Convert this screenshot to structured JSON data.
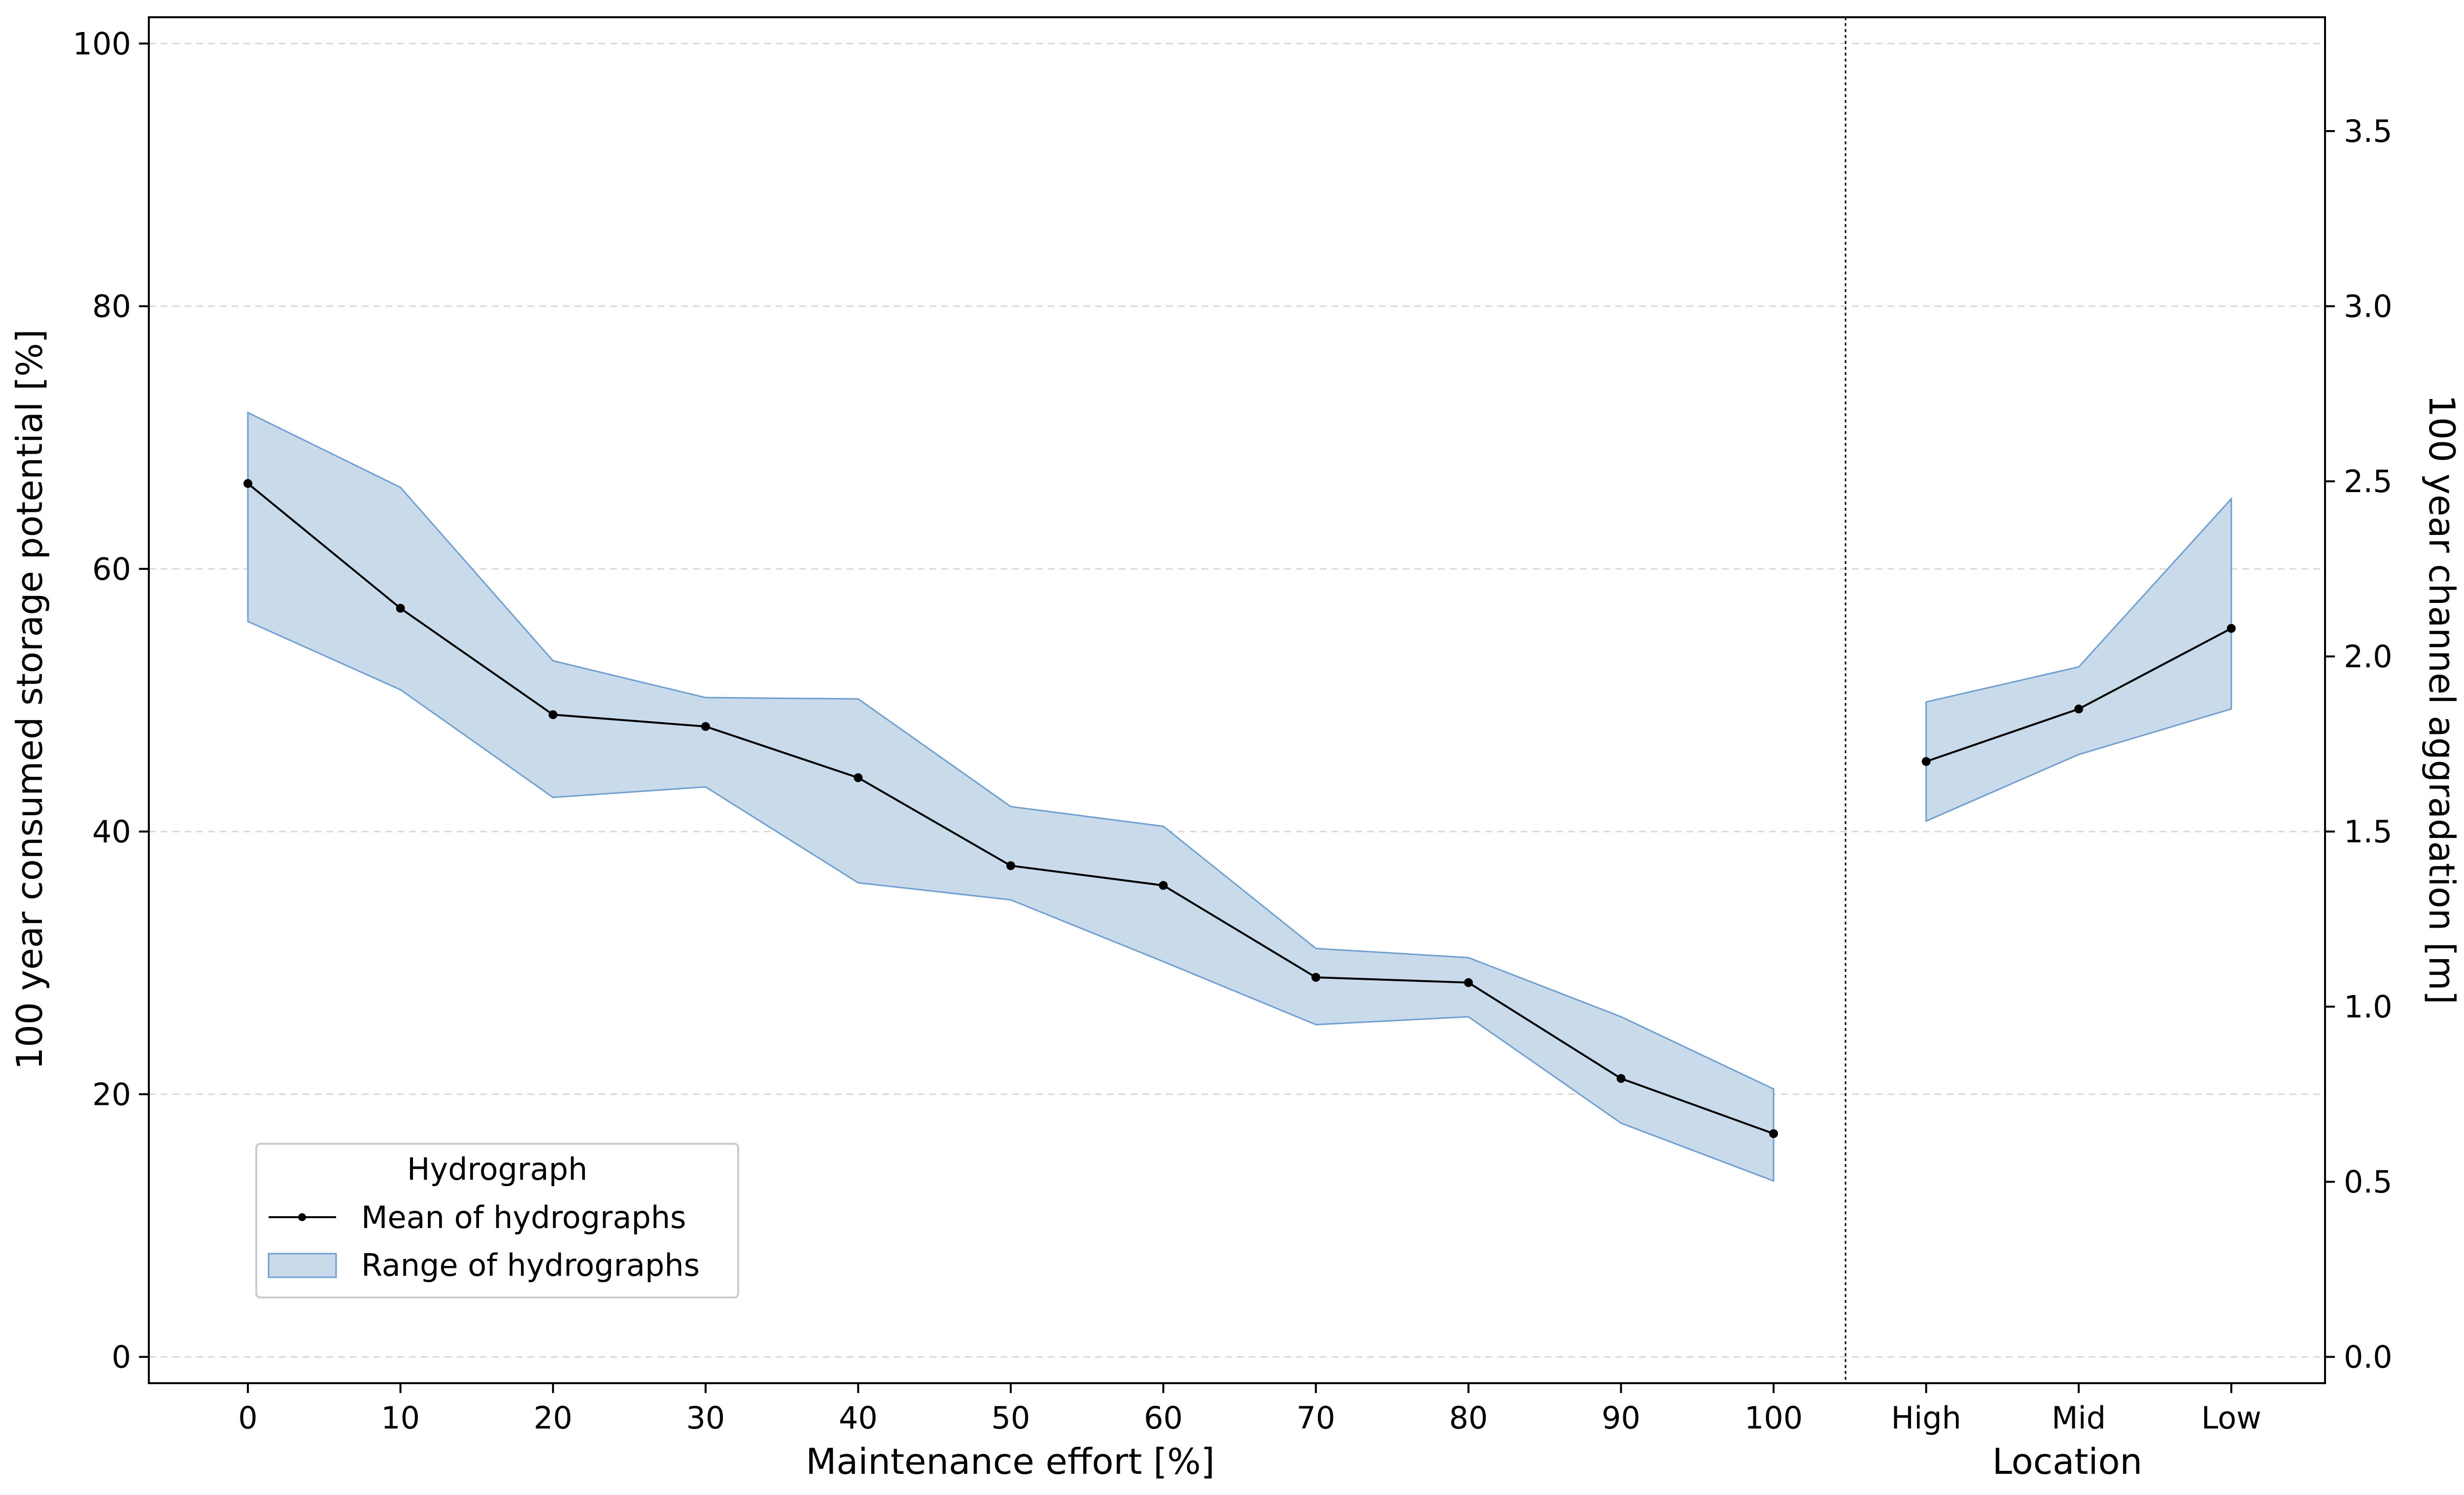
{
  "chart_data": {
    "type": "line",
    "x": [
      "0",
      "10",
      "20",
      "30",
      "40",
      "50",
      "60",
      "70",
      "80",
      "90",
      "100",
      "High",
      "Mid",
      "Low"
    ],
    "left_panel_x": [
      0,
      10,
      20,
      30,
      40,
      50,
      60,
      70,
      80,
      90,
      100
    ],
    "right_panel_x": [
      "High",
      "Mid",
      "Low"
    ],
    "series": [
      {
        "name": "Mean of hydrographs",
        "kind": "line",
        "color": "#000000",
        "left_values": [
          66.5,
          57.0,
          48.9,
          48.0,
          44.1,
          37.4,
          35.9,
          28.9,
          28.5,
          21.2,
          17.0
        ],
        "right_values": [
          1.7,
          1.85,
          2.08
        ]
      },
      {
        "name": "Range of hydrographs",
        "kind": "band",
        "color": "#c9dbeb",
        "edge_color": "#6f9fd0",
        "left_lower": [
          56.0,
          50.8,
          42.6,
          43.4,
          36.1,
          34.8,
          30.1,
          25.3,
          25.9,
          17.8,
          13.4
        ],
        "left_upper": [
          71.9,
          66.2,
          53.0,
          50.2,
          50.1,
          41.9,
          40.4,
          31.1,
          30.4,
          25.9,
          20.4
        ],
        "right_lower": [
          1.53,
          1.72,
          1.85
        ],
        "right_upper": [
          1.87,
          1.97,
          2.45
        ]
      }
    ],
    "ylabel_left": "100 year consumed storage potential [%]",
    "ylabel_right": "100 year channel aggradation [m]",
    "xlabel_left": "Maintenance effort [%]",
    "xlabel_right": "Location",
    "ylim_left": [
      -2,
      102
    ],
    "ylim_right": [
      -0.075,
      3.825
    ],
    "yticks_left": [
      0,
      20,
      40,
      60,
      80,
      100
    ],
    "yticks_right": [
      0.0,
      0.5,
      1.0,
      1.5,
      2.0,
      2.5,
      3.0,
      3.5
    ],
    "ytick_labels_left": [
      "0",
      "20",
      "40",
      "60",
      "80",
      "100"
    ],
    "ytick_labels_right": [
      "0.0",
      "0.5",
      "1.0",
      "1.5",
      "2.0",
      "2.5",
      "3.0",
      "3.5"
    ],
    "grid": "horizontal dashed",
    "legend": {
      "title": "Hydrograph",
      "position": "lower-left",
      "entries": [
        "Mean of hydrographs",
        "Range of hydrographs"
      ]
    }
  }
}
